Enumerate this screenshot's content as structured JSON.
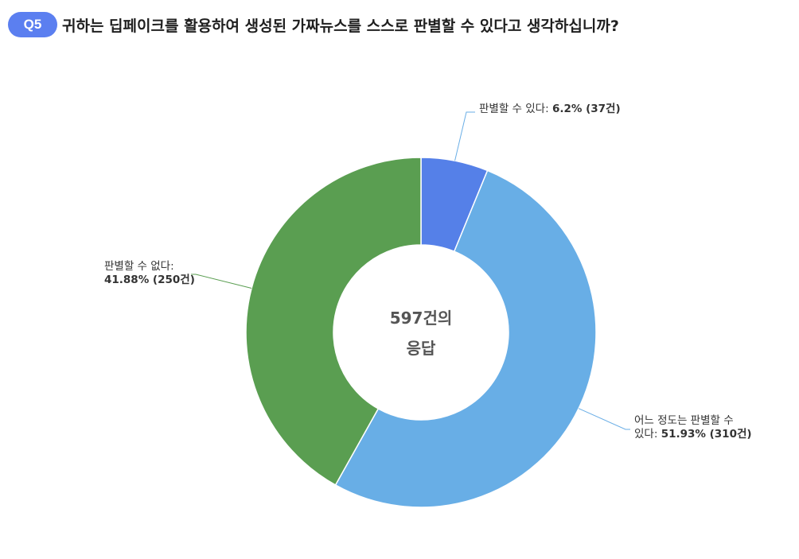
{
  "question": {
    "badge": "Q5",
    "text": "귀하는 딥페이크를 활용하여 생성된 가짜뉴스를 스스로 판별할 수 있다고 생각하십니까?"
  },
  "colors": {
    "badge": "#5b7ff0",
    "leader_blue": "#6aaee6",
    "leader_green": "#5a9e51"
  },
  "chart_data": {
    "type": "pie",
    "subtype": "donut",
    "center_label": [
      "597건의",
      "응답"
    ],
    "total": 597,
    "slices": [
      {
        "label_lines": [
          "판별할 수 있다:"
        ],
        "value_text": "6.2% (37건)",
        "percent": 6.2,
        "count": 37,
        "color": "#5580e8"
      },
      {
        "label_lines": [
          "어느 정도는 판별할 수",
          "있다:"
        ],
        "value_text": "51.93% (310건)",
        "percent": 51.93,
        "count": 310,
        "color": "#68aee6"
      },
      {
        "label_lines": [
          "판별할 수 없다:"
        ],
        "value_text": "41.88% (250건)",
        "percent": 41.88,
        "count": 250,
        "color": "#5a9e51"
      }
    ]
  }
}
